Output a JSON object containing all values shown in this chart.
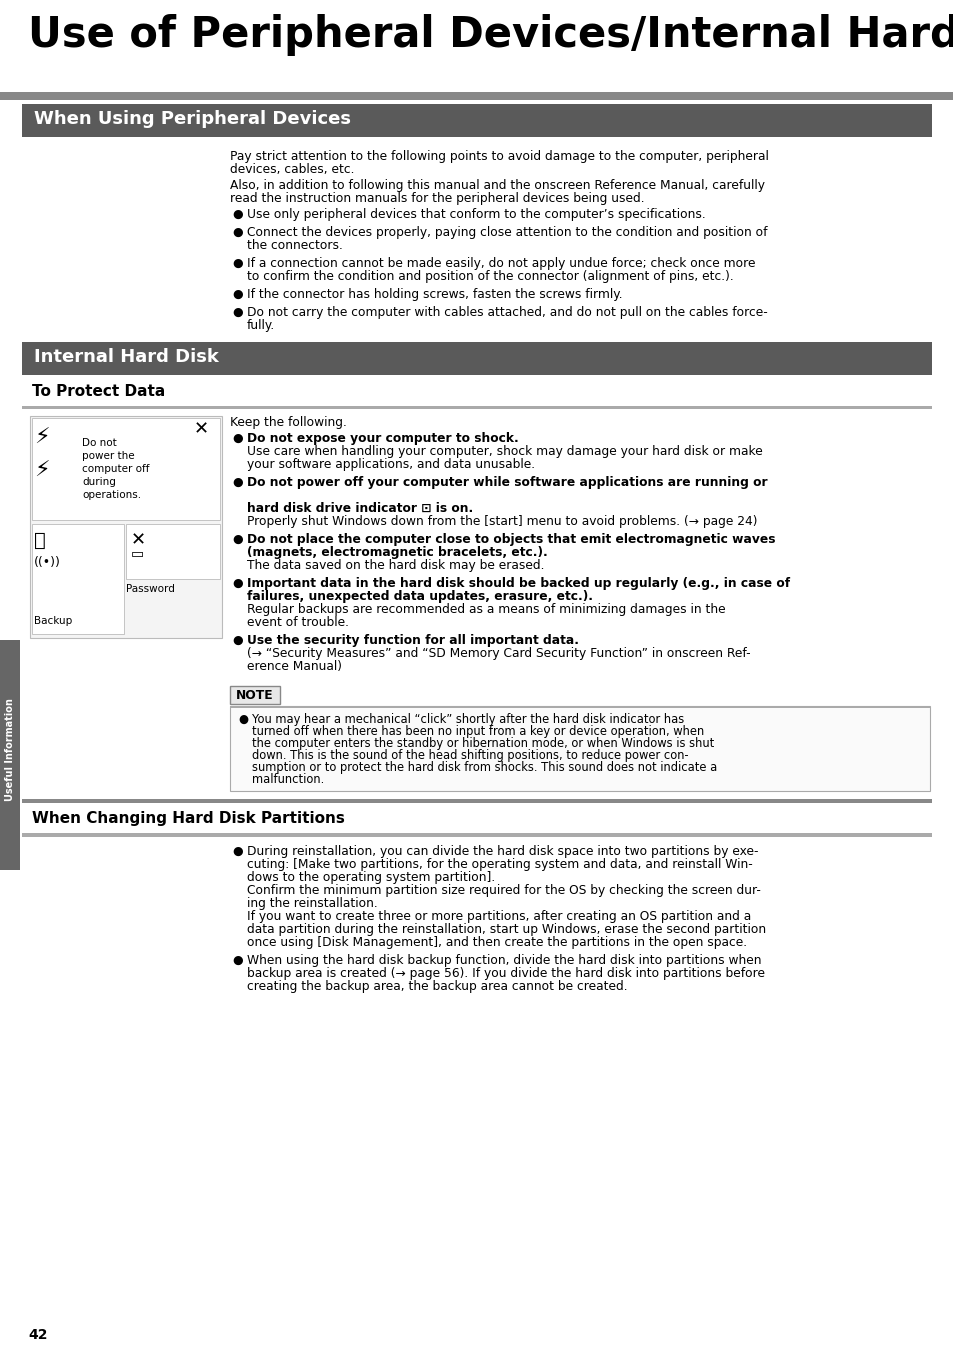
{
  "title": "Use of Peripheral Devices/Internal Hard Disk",
  "sec1_header": "When Using Peripheral Devices",
  "sec1_body1": "Pay strict attention to the following points to avoid damage to the computer, peripheral\ndevices, cables, etc.",
  "sec1_body2": "Also, in addition to following this manual and the onscreen Reference Manual, carefully\nread the instruction manuals for the peripheral devices being used.",
  "sec1_bullets": [
    "Use only peripheral devices that conform to the computer’s specifications.",
    "Connect the devices properly, paying close attention to the condition and position of\nthe connectors.",
    "If a connection cannot be made easily, do not apply undue force; check once more\nto confirm the condition and position of the connector (alignment of pins, etc.).",
    "If the connector has holding screws, fasten the screws firmly.",
    "Do not carry the computer with cables attached, and do not pull on the cables force-\nfully."
  ],
  "sec2_header": "Internal Hard Disk",
  "sec2_sub": "To Protect Data",
  "sec2_keep": "Keep the following.",
  "sec2_bullets_bold": [
    "Do not expose your computer to shock.",
    "Do not power off your computer while software applications are running or\n\nhard disk drive indicator ⊡ is on.",
    "Do not place the computer close to objects that emit electromagnetic waves\n(magnets, electromagnetic bracelets, etc.).",
    "Important data in the hard disk should be backed up regularly (e.g., in case of\nfailures, unexpected data updates, erasure, etc.).",
    "Use the security function for all important data."
  ],
  "sec2_bullets_norm": [
    "Use care when handling your computer, shock may damage your hard disk or make\nyour software applications, and data unusable.",
    "Properly shut Windows down from the [start] menu to avoid problems. (→ page 24)",
    "The data saved on the hard disk may be erased.",
    "Regular backups are recommended as a means of minimizing damages in the\nevent of trouble.",
    "(→ “Security Measures” and “SD Memory Card Security Function” in onscreen Ref-\nerence Manual)"
  ],
  "img_labels": [
    "Do not",
    "power the",
    "computer off",
    "during",
    "operations.",
    "Password",
    "Backup"
  ],
  "note_header": "NOTE",
  "note_lines": [
    "You may hear a mechanical “click” shortly after the hard disk indicator has",
    "turned off when there has been no input from a key or device operation, when",
    "the computer enters the standby or hibernation mode, or when Windows is shut",
    "down. This is the sound of the head shifting positions, to reduce power con-",
    "sumption or to protect the hard disk from shocks. This sound does not indicate a",
    "malfunction."
  ],
  "sec3_header": "When Changing Hard Disk Partitions",
  "sec3_b1_lines": [
    "During reinstallation, you can divide the hard disk space into two partitions by exe-",
    "cuting: [Make two partitions, for the operating system and data, and reinstall Win-",
    "dows to the operating system partition].",
    "Confirm the minimum partition size required for the OS by checking the screen dur-",
    "ing the reinstallation.",
    "If you want to create three or more partitions, after creating an OS partition and a",
    "data partition during the reinstallation, start up Windows, erase the second partition",
    "once using [Disk Management], and then create the partitions in the open space."
  ],
  "sec3_b2_lines": [
    "When using the hard disk backup function, divide the hard disk into partitions when",
    "backup area is created (→ page 56). If you divide the hard disk into partitions before",
    "creating the backup area, the backup area cannot be created."
  ],
  "page_number": "42",
  "sidebar_text": "Useful Information",
  "hdr_bg": "#5a5a5a",
  "hdr_fg": "#ffffff",
  "gray_bar": "#888888",
  "light_gray": "#aaaaaa",
  "bg": "#ffffff",
  "title_fs": 30,
  "hdr_fs": 13,
  "sub_fs": 11,
  "body_fs": 8.8,
  "note_fs": 8.3
}
